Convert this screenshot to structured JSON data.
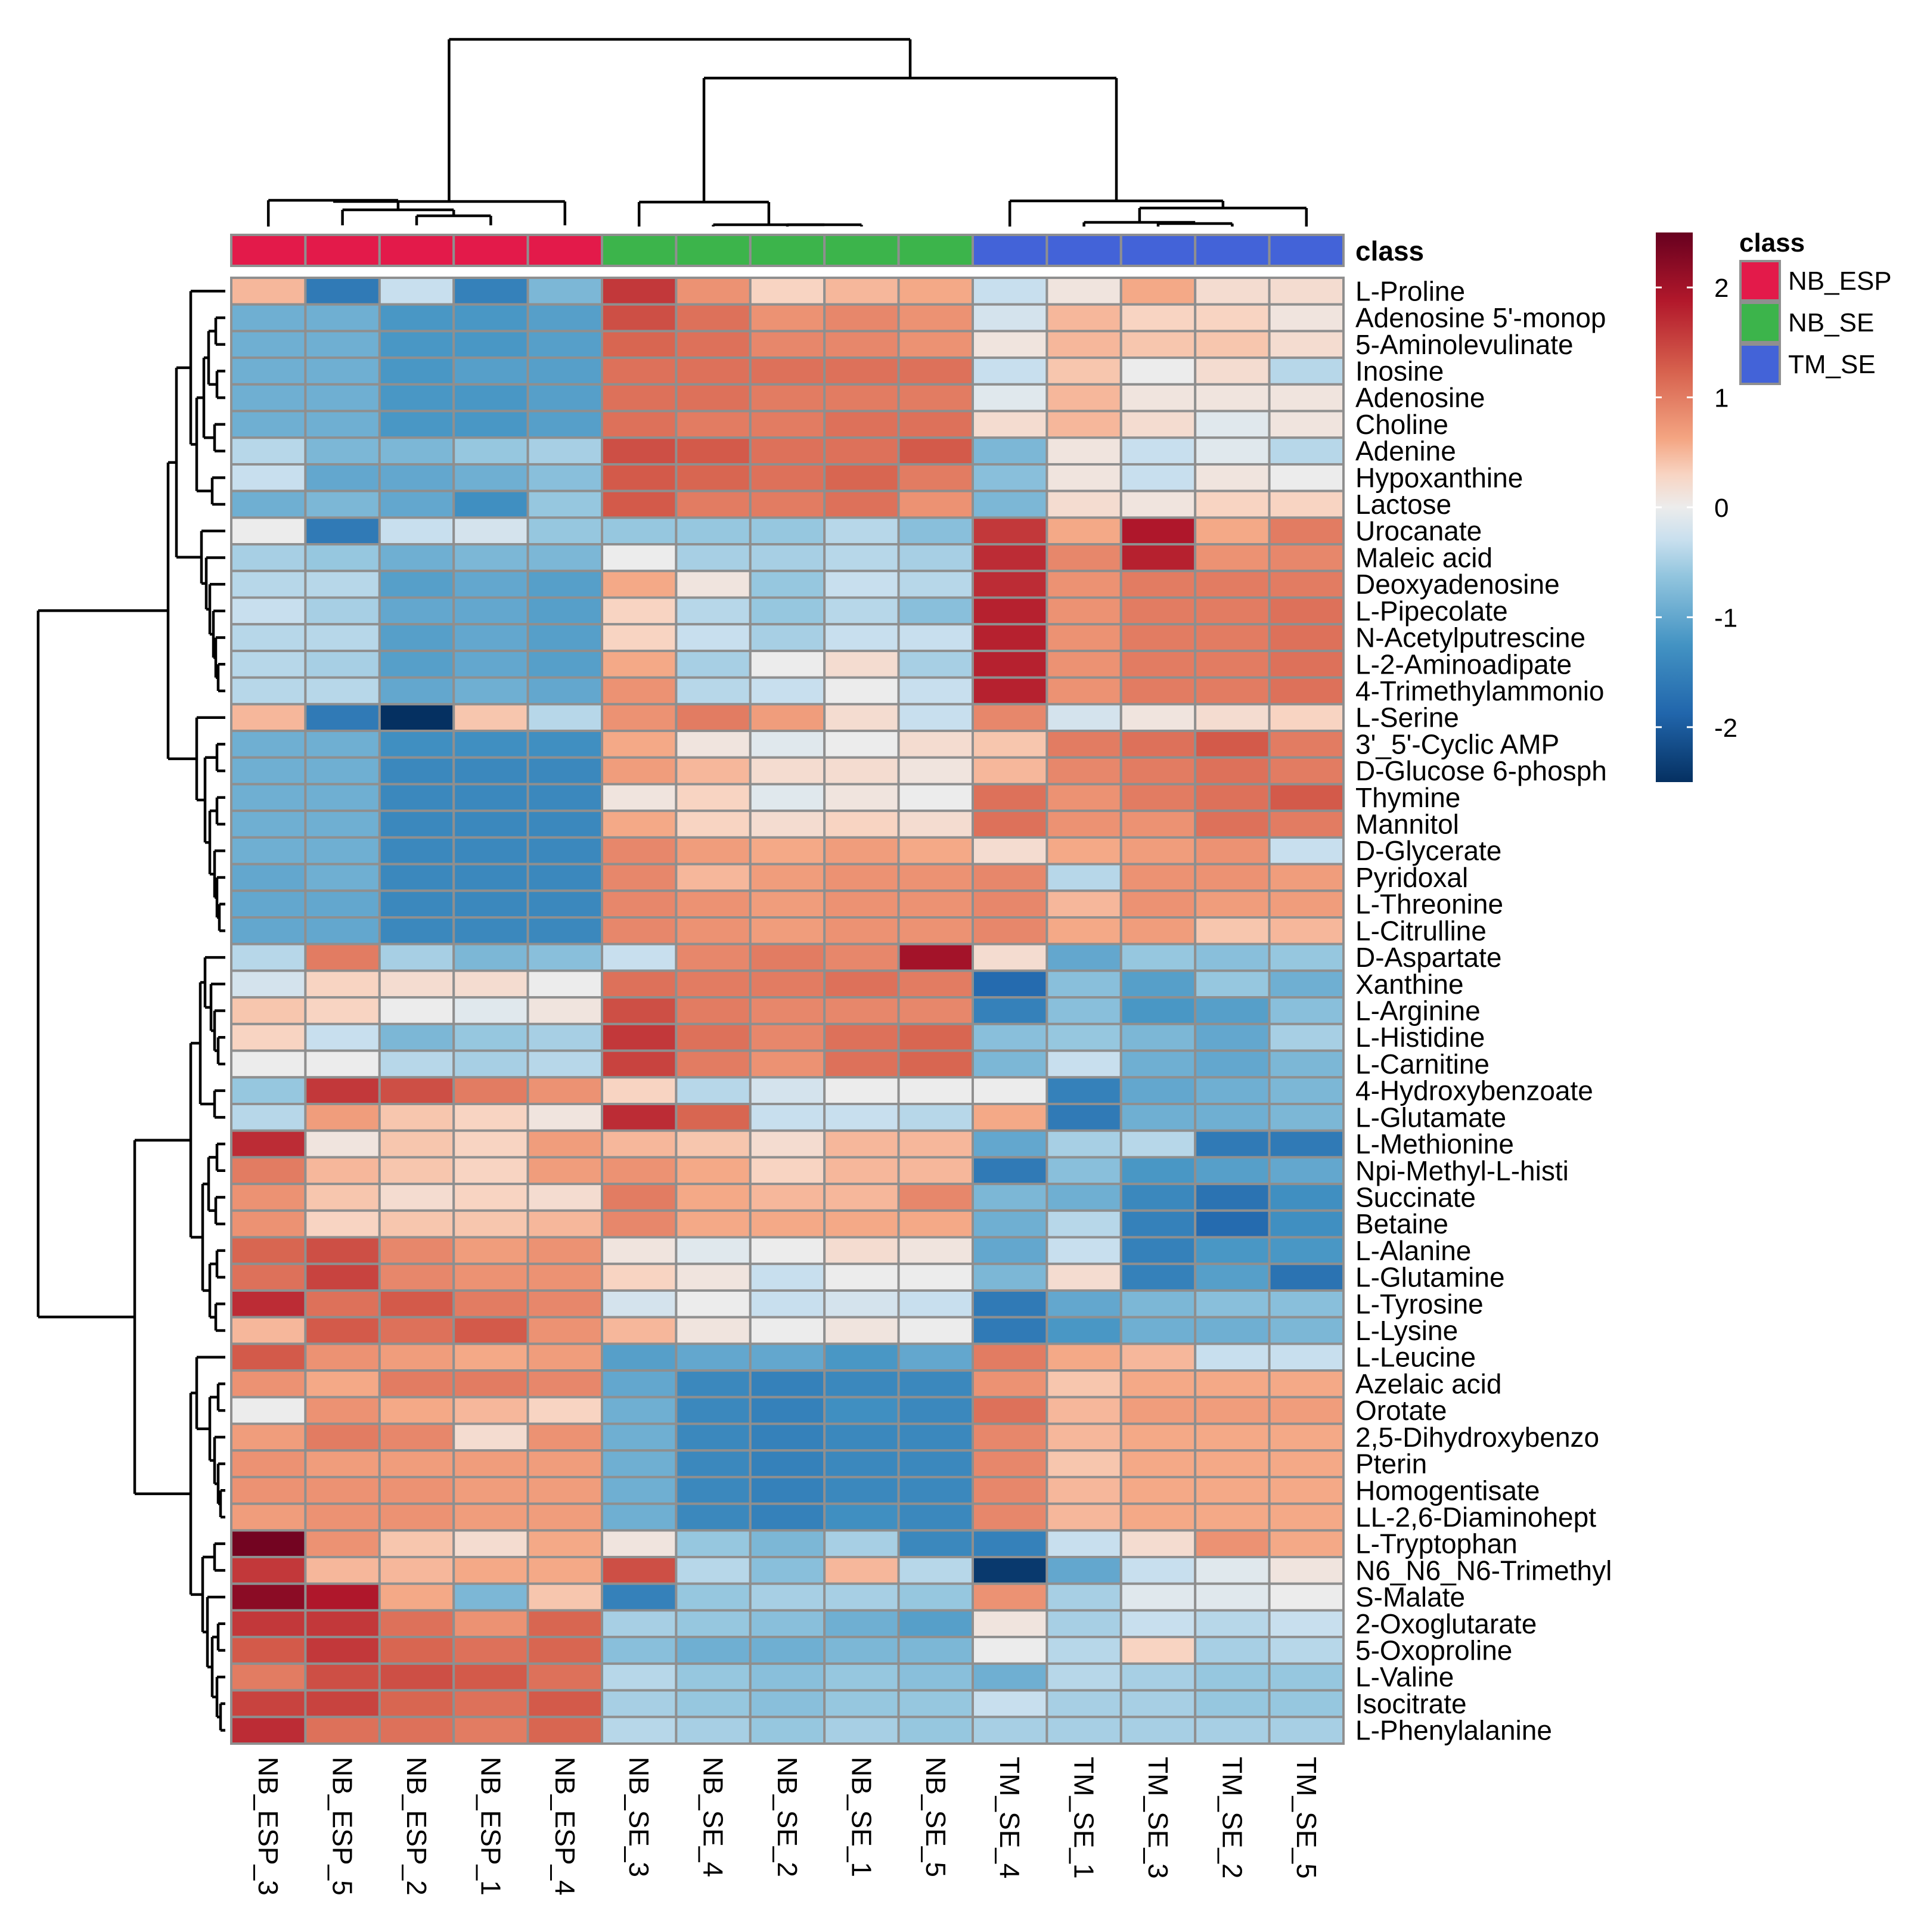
{
  "chart_data": {
    "type": "heatmap",
    "title": "",
    "annotation_title": "class",
    "columns": [
      "NB_ESP_3",
      "NB_ESP_5",
      "NB_ESP_2",
      "NB_ESP_1",
      "NB_ESP_4",
      "NB_SE_3",
      "NB_SE_4",
      "NB_SE_2",
      "NB_SE_1",
      "NB_SE_5",
      "TM_SE_4",
      "TM_SE_1",
      "TM_SE_3",
      "TM_SE_2",
      "TM_SE_5"
    ],
    "column_classes": [
      "NB_ESP",
      "NB_ESP",
      "NB_ESP",
      "NB_ESP",
      "NB_ESP",
      "NB_SE",
      "NB_SE",
      "NB_SE",
      "NB_SE",
      "NB_SE",
      "TM_SE",
      "TM_SE",
      "TM_SE",
      "TM_SE",
      "TM_SE"
    ],
    "legend": {
      "title": "class",
      "classes": [
        {
          "name": "NB_ESP",
          "color": "#e31a4a"
        },
        {
          "name": "NB_SE",
          "color": "#3cb44b"
        },
        {
          "name": "TM_SE",
          "color": "#4363d8"
        }
      ]
    },
    "color_scale": {
      "range": [
        -2.5,
        2.5
      ],
      "ticks": [
        "2",
        "1",
        "0",
        "-1",
        "-2"
      ],
      "tick_values": [
        2,
        1,
        0,
        -1,
        -2
      ],
      "stops": [
        {
          "v": -2.5,
          "c": "#053061"
        },
        {
          "v": -1.875,
          "c": "#2166ac"
        },
        {
          "v": -1.25,
          "c": "#4393c3"
        },
        {
          "v": -0.625,
          "c": "#92c5de"
        },
        {
          "v": -0.3,
          "c": "#c8dfee"
        },
        {
          "v": 0,
          "c": "#ececec"
        },
        {
          "v": 0.3,
          "c": "#f8d4c2"
        },
        {
          "v": 0.625,
          "c": "#f4a582"
        },
        {
          "v": 1.25,
          "c": "#d6604d"
        },
        {
          "v": 1.875,
          "c": "#b2182b"
        },
        {
          "v": 2.5,
          "c": "#67001f"
        }
      ]
    },
    "rows": [
      {
        "name": "L-Proline",
        "values": [
          0.5,
          -1.6,
          -0.3,
          -1.5,
          -0.8,
          1.6,
          0.8,
          0.3,
          0.5,
          0.6,
          -0.3,
          0.1,
          0.6,
          0.2,
          0.2
        ]
      },
      {
        "name": "Adenosine 5'-monop",
        "values": [
          -0.9,
          -0.9,
          -1.2,
          -1.2,
          -1.1,
          1.4,
          1.1,
          0.8,
          0.9,
          0.8,
          -0.2,
          0.5,
          0.3,
          0.3,
          0.1
        ]
      },
      {
        "name": "5-Aminolevulinate",
        "values": [
          -0.9,
          -0.9,
          -1.2,
          -1.2,
          -1.1,
          1.2,
          1.1,
          0.9,
          0.9,
          0.8,
          0.1,
          0.5,
          0.4,
          0.4,
          0.2
        ]
      },
      {
        "name": "Inosine",
        "values": [
          -0.9,
          -0.9,
          -1.2,
          -1.1,
          -1.1,
          1.1,
          1.1,
          1.1,
          1.1,
          1.1,
          -0.3,
          0.4,
          0.0,
          0.2,
          -0.4
        ]
      },
      {
        "name": "Adenosine",
        "values": [
          -0.9,
          -0.9,
          -1.2,
          -1.2,
          -1.1,
          1.1,
          1.1,
          1.0,
          1.0,
          1.0,
          -0.1,
          0.5,
          0.1,
          0.1,
          0.1
        ]
      },
      {
        "name": "Choline",
        "values": [
          -0.9,
          -0.9,
          -1.2,
          -1.2,
          -1.1,
          1.1,
          1.0,
          1.0,
          1.1,
          1.1,
          0.2,
          0.5,
          0.2,
          -0.1,
          0.1
        ]
      },
      {
        "name": "Adenine",
        "values": [
          -0.4,
          -0.8,
          -0.8,
          -0.6,
          -0.5,
          1.4,
          1.3,
          1.1,
          1.1,
          1.3,
          -0.8,
          0.1,
          -0.3,
          -0.1,
          -0.4
        ]
      },
      {
        "name": "Hypoxanthine",
        "values": [
          -0.3,
          -1.0,
          -1.0,
          -0.9,
          -0.7,
          1.3,
          1.2,
          1.1,
          1.2,
          1.0,
          -0.7,
          0.1,
          -0.3,
          0.1,
          0.0
        ]
      },
      {
        "name": "Lactose",
        "values": [
          -0.9,
          -0.8,
          -1.0,
          -1.3,
          -0.6,
          1.3,
          1.0,
          1.0,
          1.1,
          0.8,
          -0.8,
          0.2,
          0.1,
          0.3,
          0.3
        ]
      },
      {
        "name": "Urocanate",
        "values": [
          0.0,
          -1.6,
          -0.3,
          -0.2,
          -0.6,
          -0.6,
          -0.6,
          -0.6,
          -0.4,
          -0.7,
          1.6,
          0.6,
          1.9,
          0.6,
          1.0
        ]
      },
      {
        "name": "Maleic acid",
        "values": [
          -0.5,
          -0.6,
          -0.9,
          -0.8,
          -0.8,
          0.0,
          -0.5,
          -0.5,
          -0.4,
          -0.5,
          1.7,
          0.9,
          1.8,
          0.8,
          0.9
        ]
      },
      {
        "name": "Deoxyadenosine",
        "values": [
          -0.4,
          -0.4,
          -1.1,
          -1.0,
          -1.1,
          0.6,
          0.1,
          -0.6,
          -0.3,
          -0.4,
          1.7,
          0.8,
          1.0,
          1.0,
          1.0
        ]
      },
      {
        "name": "L-Pipecolate",
        "values": [
          -0.3,
          -0.5,
          -1.0,
          -1.0,
          -1.1,
          0.3,
          -0.4,
          -0.6,
          -0.4,
          -0.7,
          1.8,
          0.8,
          1.0,
          1.0,
          1.1
        ]
      },
      {
        "name": "N-Acetylputrescine",
        "values": [
          -0.4,
          -0.4,
          -1.1,
          -1.0,
          -1.1,
          0.3,
          -0.3,
          -0.5,
          -0.3,
          -0.3,
          1.8,
          0.8,
          1.0,
          1.0,
          1.1
        ]
      },
      {
        "name": "L-2-Aminoadipate",
        "values": [
          -0.4,
          -0.5,
          -1.1,
          -1.0,
          -1.1,
          0.6,
          -0.5,
          0.0,
          0.2,
          -0.5,
          1.8,
          0.8,
          1.0,
          1.0,
          1.1
        ]
      },
      {
        "name": "4-Trimethylammonio",
        "values": [
          -0.4,
          -0.4,
          -1.0,
          -0.9,
          -1.0,
          0.8,
          -0.4,
          -0.3,
          0.0,
          -0.3,
          1.8,
          0.8,
          1.0,
          1.0,
          1.1
        ]
      },
      {
        "name": "L-Serine",
        "values": [
          0.5,
          -1.6,
          -2.5,
          0.4,
          -0.4,
          0.8,
          1.0,
          0.7,
          0.2,
          -0.3,
          0.9,
          -0.2,
          0.1,
          0.2,
          0.3
        ]
      },
      {
        "name": "3'_5'-Cyclic AMP",
        "values": [
          -0.9,
          -0.9,
          -1.3,
          -1.3,
          -1.3,
          0.6,
          0.1,
          -0.1,
          0.0,
          0.2,
          0.4,
          1.0,
          1.1,
          1.3,
          1.0
        ]
      },
      {
        "name": "D-Glucose 6-phosph",
        "values": [
          -0.9,
          -0.9,
          -1.4,
          -1.4,
          -1.4,
          0.7,
          0.5,
          0.2,
          0.2,
          0.1,
          0.5,
          0.9,
          1.0,
          1.1,
          1.0
        ]
      },
      {
        "name": "Thymine",
        "values": [
          -0.9,
          -0.9,
          -1.4,
          -1.4,
          -1.4,
          0.1,
          0.3,
          -0.1,
          0.1,
          0.0,
          1.1,
          0.8,
          1.0,
          1.1,
          1.3
        ]
      },
      {
        "name": "Mannitol",
        "values": [
          -0.9,
          -0.9,
          -1.4,
          -1.4,
          -1.4,
          0.6,
          0.3,
          0.2,
          0.3,
          0.2,
          1.1,
          0.8,
          0.8,
          1.1,
          1.0
        ]
      },
      {
        "name": "D-Glycerate",
        "values": [
          -0.9,
          -0.9,
          -1.4,
          -1.4,
          -1.4,
          0.9,
          0.7,
          0.6,
          0.7,
          0.6,
          0.2,
          0.6,
          0.7,
          0.8,
          -0.3
        ]
      },
      {
        "name": "Pyridoxal",
        "values": [
          -1.0,
          -0.9,
          -1.4,
          -1.4,
          -1.4,
          0.9,
          0.5,
          0.7,
          0.8,
          0.8,
          0.9,
          -0.4,
          0.8,
          0.8,
          0.7
        ]
      },
      {
        "name": "L-Threonine",
        "values": [
          -1.0,
          -1.0,
          -1.4,
          -1.4,
          -1.4,
          0.9,
          0.8,
          0.7,
          0.8,
          0.8,
          0.9,
          0.5,
          0.8,
          0.7,
          0.7
        ]
      },
      {
        "name": "L-Citrulline",
        "values": [
          -1.0,
          -1.0,
          -1.4,
          -1.4,
          -1.4,
          0.9,
          0.8,
          0.7,
          0.8,
          0.8,
          0.9,
          0.6,
          0.7,
          0.4,
          0.5
        ]
      },
      {
        "name": "D-Aspartate",
        "values": [
          -0.4,
          1.0,
          -0.5,
          -0.8,
          -0.7,
          -0.3,
          0.9,
          1.0,
          0.9,
          2.0,
          0.2,
          -1.0,
          -0.6,
          -0.7,
          -0.6
        ]
      },
      {
        "name": "Xanthine",
        "values": [
          -0.2,
          0.3,
          0.2,
          0.2,
          0.0,
          1.1,
          1.0,
          1.0,
          1.1,
          1.0,
          -1.8,
          -0.7,
          -1.1,
          -0.6,
          -0.9
        ]
      },
      {
        "name": "L-Arginine",
        "values": [
          0.4,
          0.3,
          0.0,
          -0.1,
          0.1,
          1.4,
          1.0,
          0.9,
          0.9,
          0.9,
          -1.5,
          -0.7,
          -1.2,
          -1.1,
          -0.7
        ]
      },
      {
        "name": "L-Histidine",
        "values": [
          0.3,
          -0.3,
          -0.8,
          -0.6,
          -0.5,
          1.6,
          1.1,
          0.9,
          1.1,
          1.2,
          -0.7,
          -0.6,
          -0.8,
          -1.0,
          -0.5
        ]
      },
      {
        "name": "L-Carnitine",
        "values": [
          0.0,
          0.0,
          -0.4,
          -0.5,
          -0.4,
          1.5,
          1.0,
          0.8,
          1.1,
          1.2,
          -0.8,
          -0.3,
          -0.9,
          -1.0,
          -0.8
        ]
      },
      {
        "name": "4-Hydroxybenzoate",
        "values": [
          -0.6,
          1.6,
          1.4,
          1.0,
          0.8,
          0.3,
          -0.4,
          -0.2,
          0.0,
          0.0,
          0.0,
          -1.5,
          -1.0,
          -0.9,
          -0.8
        ]
      },
      {
        "name": "L-Glutamate",
        "values": [
          -0.4,
          0.7,
          0.4,
          0.3,
          0.1,
          1.7,
          1.2,
          -0.3,
          -0.3,
          -0.4,
          0.6,
          -1.6,
          -0.9,
          -0.9,
          -0.8
        ]
      },
      {
        "name": "L-Methionine",
        "values": [
          1.7,
          0.1,
          0.4,
          0.3,
          0.7,
          0.5,
          0.4,
          0.2,
          0.5,
          0.5,
          -1.0,
          -0.5,
          -0.4,
          -1.6,
          -1.6
        ]
      },
      {
        "name": "Npi-Methyl-L-histi",
        "values": [
          1.0,
          0.5,
          0.4,
          0.3,
          0.7,
          0.8,
          0.6,
          0.3,
          0.5,
          0.5,
          -1.6,
          -0.7,
          -1.2,
          -1.1,
          -1.0
        ]
      },
      {
        "name": "Succinate",
        "values": [
          0.8,
          0.4,
          0.2,
          0.3,
          0.2,
          1.0,
          0.6,
          0.5,
          0.5,
          0.9,
          -0.8,
          -0.9,
          -1.4,
          -1.7,
          -1.3
        ]
      },
      {
        "name": "Betaine",
        "values": [
          0.8,
          0.3,
          0.4,
          0.4,
          0.5,
          0.9,
          0.6,
          0.6,
          0.6,
          0.6,
          -0.9,
          -0.4,
          -1.5,
          -1.8,
          -1.3
        ]
      },
      {
        "name": "L-Alanine",
        "values": [
          1.2,
          1.4,
          0.9,
          0.7,
          0.8,
          0.1,
          -0.1,
          0.0,
          0.2,
          0.1,
          -1.0,
          -0.3,
          -1.5,
          -1.2,
          -1.2
        ]
      },
      {
        "name": "L-Glutamine",
        "values": [
          1.1,
          1.5,
          0.9,
          0.8,
          0.8,
          0.3,
          0.1,
          -0.3,
          0.0,
          0.0,
          -0.8,
          0.2,
          -1.5,
          -1.1,
          -1.7
        ]
      },
      {
        "name": "L-Tyrosine",
        "values": [
          1.7,
          1.1,
          1.3,
          1.0,
          0.9,
          -0.2,
          0.0,
          -0.3,
          -0.2,
          -0.3,
          -1.6,
          -1.0,
          -0.8,
          -0.7,
          -0.7
        ]
      },
      {
        "name": "L-Lysine",
        "values": [
          0.5,
          1.3,
          1.1,
          1.3,
          0.8,
          0.5,
          0.1,
          0.0,
          0.1,
          0.0,
          -1.6,
          -1.2,
          -0.9,
          -0.9,
          -0.8
        ]
      },
      {
        "name": "L-Leucine",
        "values": [
          1.3,
          0.8,
          0.7,
          0.6,
          0.7,
          -1.1,
          -1.0,
          -1.0,
          -1.2,
          -1.0,
          1.0,
          0.6,
          0.5,
          -0.3,
          -0.3
        ]
      },
      {
        "name": "Azelaic acid",
        "values": [
          0.8,
          0.6,
          1.0,
          1.0,
          0.9,
          -1.0,
          -1.4,
          -1.5,
          -1.4,
          -1.4,
          0.8,
          0.4,
          0.6,
          0.6,
          0.6
        ]
      },
      {
        "name": "Orotate",
        "values": [
          0.0,
          0.8,
          0.6,
          0.5,
          0.3,
          -0.9,
          -1.4,
          -1.5,
          -1.3,
          -1.4,
          1.1,
          0.5,
          0.7,
          0.7,
          0.7
        ]
      },
      {
        "name": "2,5-Dihydroxybenzo",
        "values": [
          0.7,
          1.0,
          0.9,
          0.2,
          0.8,
          -0.9,
          -1.4,
          -1.5,
          -1.4,
          -1.4,
          0.9,
          0.5,
          0.6,
          0.6,
          0.6
        ]
      },
      {
        "name": "Pterin",
        "values": [
          0.8,
          0.7,
          0.7,
          0.7,
          0.7,
          -0.9,
          -1.4,
          -1.5,
          -1.4,
          -1.4,
          0.9,
          0.4,
          0.6,
          0.6,
          0.6
        ]
      },
      {
        "name": "Homogentisate",
        "values": [
          0.8,
          0.8,
          0.8,
          0.7,
          0.7,
          -0.9,
          -1.4,
          -1.5,
          -1.4,
          -1.4,
          0.9,
          0.5,
          0.6,
          0.6,
          0.6
        ]
      },
      {
        "name": "LL-2,6-Diaminohept",
        "values": [
          0.7,
          0.8,
          0.8,
          0.7,
          0.7,
          -0.9,
          -1.4,
          -1.5,
          -1.3,
          -1.4,
          0.9,
          0.5,
          0.6,
          0.6,
          0.6
        ]
      },
      {
        "name": "L-Tryptophan",
        "values": [
          2.4,
          0.8,
          0.4,
          0.2,
          0.6,
          0.1,
          -0.6,
          -0.8,
          -0.5,
          -1.4,
          -1.5,
          -0.3,
          0.2,
          0.8,
          0.6
        ]
      },
      {
        "name": "N6_N6_N6-Trimethyl",
        "values": [
          1.6,
          0.5,
          0.5,
          0.6,
          0.6,
          1.4,
          -0.4,
          -0.7,
          0.5,
          -0.4,
          -2.4,
          -1.0,
          -0.3,
          -0.1,
          0.1
        ]
      },
      {
        "name": "S-Malate",
        "values": [
          2.2,
          1.9,
          0.6,
          -0.8,
          0.4,
          -1.5,
          -0.6,
          -0.5,
          -0.5,
          -0.6,
          0.8,
          -0.5,
          -0.1,
          -0.1,
          0.0
        ]
      },
      {
        "name": "2-Oxoglutarate",
        "values": [
          1.6,
          1.6,
          1.1,
          0.8,
          1.2,
          -0.5,
          -0.6,
          -0.7,
          -0.9,
          -1.1,
          0.1,
          -0.5,
          -0.3,
          -0.4,
          -0.3
        ]
      },
      {
        "name": "5-Oxoproline",
        "values": [
          1.3,
          1.6,
          1.2,
          1.1,
          1.2,
          -0.7,
          -0.9,
          -0.9,
          -0.8,
          -0.8,
          0.0,
          -0.4,
          0.3,
          -0.5,
          -0.4
        ]
      },
      {
        "name": "L-Valine",
        "values": [
          1.0,
          1.4,
          1.4,
          1.3,
          1.1,
          -0.4,
          -0.6,
          -0.7,
          -0.6,
          -0.7,
          -0.9,
          -0.4,
          -0.5,
          -0.6,
          -0.6
        ]
      },
      {
        "name": "Isocitrate",
        "values": [
          1.5,
          1.5,
          1.2,
          1.1,
          1.3,
          -0.5,
          -0.6,
          -0.7,
          -0.6,
          -0.6,
          -0.3,
          -0.5,
          -0.5,
          -0.6,
          -0.6
        ]
      },
      {
        "name": "L-Phenylalanine",
        "values": [
          1.7,
          1.1,
          1.1,
          1.0,
          1.2,
          -0.4,
          -0.5,
          -0.6,
          -0.5,
          -0.6,
          -0.5,
          -0.5,
          -0.5,
          -0.5,
          -0.5
        ]
      }
    ]
  }
}
